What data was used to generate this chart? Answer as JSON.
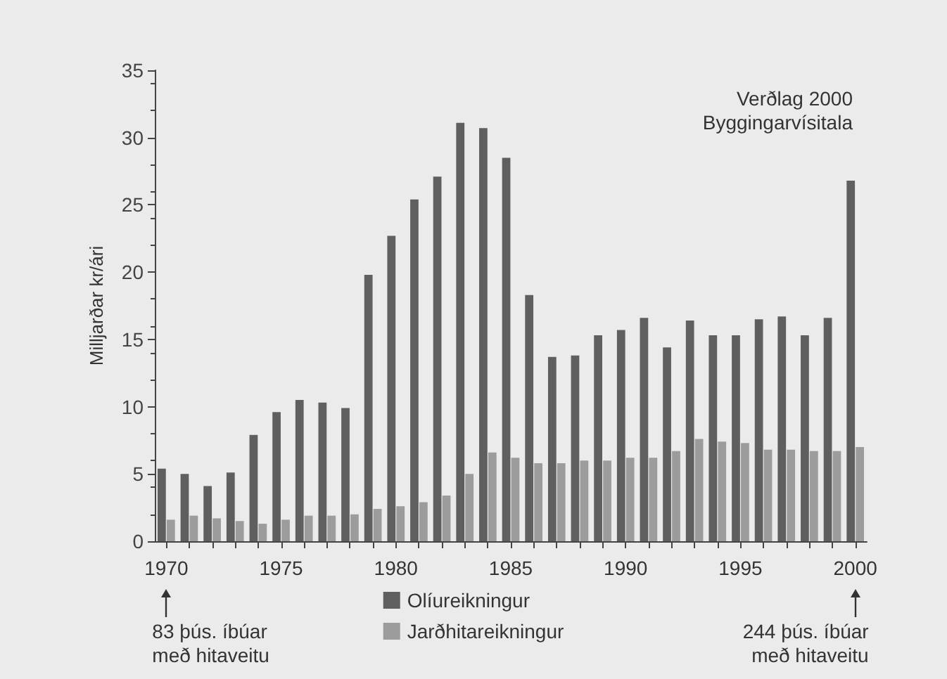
{
  "chart_data": {
    "type": "bar",
    "ylabel": "Milljarðar kr/ári",
    "categories": [
      "1970",
      null,
      null,
      null,
      null,
      "1975",
      null,
      null,
      null,
      null,
      "1980",
      null,
      null,
      null,
      null,
      "1985",
      null,
      null,
      null,
      null,
      "1990",
      null,
      null,
      null,
      null,
      "1995",
      null,
      null,
      null,
      null,
      "2000"
    ],
    "series": [
      {
        "name": "Olíureikningur",
        "color": "#5f5f5f",
        "values": [
          5.4,
          5.0,
          4.1,
          5.1,
          7.9,
          9.6,
          10.5,
          10.3,
          9.9,
          19.8,
          22.7,
          25.4,
          27.1,
          31.1,
          30.7,
          28.5,
          18.3,
          13.7,
          13.8,
          15.3,
          15.7,
          16.6,
          14.4,
          16.4,
          15.3,
          15.3,
          16.5,
          16.7,
          15.3,
          16.6,
          26.8
        ]
      },
      {
        "name": "Jarðhitareikningur",
        "color": "#9c9c9c",
        "values": [
          1.6,
          1.9,
          1.7,
          1.5,
          1.3,
          1.6,
          1.9,
          1.9,
          2.0,
          2.4,
          2.6,
          2.9,
          3.4,
          5.0,
          6.6,
          6.2,
          5.8,
          5.8,
          6.0,
          6.0,
          6.2,
          6.2,
          6.7,
          7.6,
          7.4,
          7.3,
          6.8,
          6.8,
          6.7,
          6.7,
          7.0
        ]
      }
    ],
    "ylim": [
      0,
      35
    ],
    "yticks": [
      0,
      5,
      10,
      15,
      20,
      25,
      30,
      35
    ],
    "legend": "bottom",
    "grid": false,
    "annotations": [
      "Verðlag 2000\nByggingarvísitala",
      "83 þús. íbúar\nmeð hitaveitu",
      "244 þús. íbúar\nmeð hitaveitu"
    ]
  }
}
